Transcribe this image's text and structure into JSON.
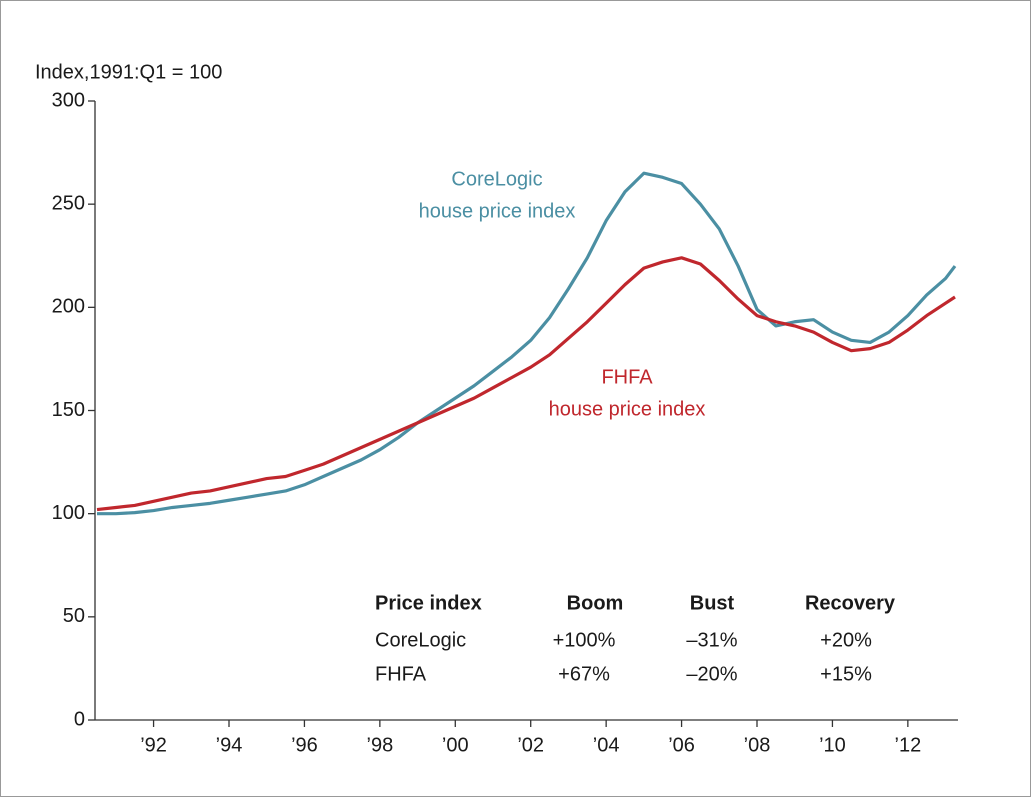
{
  "chart_data": {
    "type": "line",
    "y_label": "Index,1991:Q1 = 100",
    "x": [
      1991,
      1991.5,
      1992,
      1992.5,
      1993,
      1993.5,
      1994,
      1994.5,
      1995,
      1995.5,
      1996,
      1996.5,
      1997,
      1997.5,
      1998,
      1998.5,
      1999,
      1999.5,
      2000,
      2000.5,
      2001,
      2001.5,
      2002,
      2002.5,
      2003,
      2003.5,
      2004,
      2004.5,
      2005,
      2005.5,
      2006,
      2006.5,
      2007,
      2007.5,
      2008,
      2008.5,
      2009,
      2009.5,
      2010,
      2010.5,
      2011,
      2011.5,
      2012,
      2012.5,
      2013,
      2013.5,
      2013.75
    ],
    "series": [
      {
        "name": "CoreLogic",
        "label_suffix": "house price index",
        "color": "#4b8fa3",
        "values": [
          100,
          100,
          100.5,
          101.5,
          103,
          104,
          105,
          106.5,
          108,
          109.5,
          111,
          114,
          118,
          122,
          126,
          131,
          137,
          144,
          150,
          156,
          162,
          169,
          176,
          184,
          195,
          209,
          224,
          242,
          256,
          265,
          263,
          260,
          250,
          238,
          220,
          199,
          191,
          193,
          194,
          188,
          184,
          183,
          188,
          196,
          206,
          214,
          220
        ]
      },
      {
        "name": "FHFA",
        "label_suffix": "house price index",
        "color": "#c0272d",
        "values": [
          102,
          103,
          104,
          106,
          108,
          110,
          111,
          113,
          115,
          117,
          118,
          121,
          124,
          128,
          132,
          136,
          140,
          144,
          148,
          152,
          156,
          161,
          166,
          171,
          177,
          185,
          193,
          202,
          211,
          219,
          222,
          224,
          221,
          213,
          204,
          196,
          193,
          191,
          188,
          183,
          179,
          180,
          183,
          189,
          196,
          202,
          205
        ]
      }
    ],
    "xlim": [
      1991,
      2013.75
    ],
    "ylim": [
      0,
      300
    ],
    "yticks": [
      0,
      50,
      100,
      150,
      200,
      250,
      300
    ],
    "xticks": [
      {
        "value": 1992.5,
        "label": "’92"
      },
      {
        "value": 1994.5,
        "label": "’94"
      },
      {
        "value": 1996.5,
        "label": "’96"
      },
      {
        "value": 1998.5,
        "label": "’98"
      },
      {
        "value": 2000.5,
        "label": "’00"
      },
      {
        "value": 2002.5,
        "label": "’02"
      },
      {
        "value": 2004.5,
        "label": "’04"
      },
      {
        "value": 2006.5,
        "label": "’06"
      },
      {
        "value": 2008.5,
        "label": "’08"
      },
      {
        "value": 2010.5,
        "label": "’10"
      },
      {
        "value": 2012.5,
        "label": "’12"
      }
    ],
    "table": {
      "header": [
        "Price index",
        "Boom",
        "Bust",
        "Recovery"
      ],
      "rows": [
        [
          "CoreLogic",
          "+100%",
          "–31%",
          "+20%"
        ],
        [
          "FHFA",
          "+67%",
          "–20%",
          "+15%"
        ]
      ]
    }
  }
}
